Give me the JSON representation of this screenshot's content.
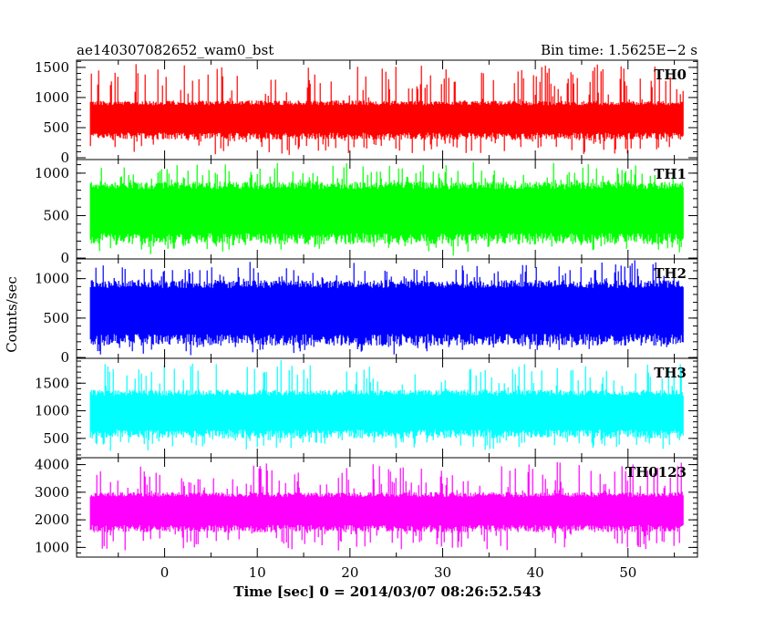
{
  "header": {
    "title": "ae140307082652_wam0_bst",
    "bin_time": "Bin time: 1.5625E−2 s"
  },
  "chart_data": {
    "type": "line",
    "xlabel": "Time [sec] 0 = 2014/03/07 08:26:52.543",
    "ylabel": "Counts/sec",
    "xlim": [
      -9.5,
      57.5
    ],
    "x_range": [
      -8,
      56
    ],
    "x_ticks": [
      0,
      10,
      20,
      30,
      40,
      50
    ],
    "panels": [
      {
        "name": "TH0",
        "color": "#ff0000",
        "ylim": [
          -30,
          1620
        ],
        "y_ticks": [
          0,
          500,
          1000,
          1500
        ],
        "band": [
          300,
          950
        ],
        "spike_max": 1600,
        "spike_min": 30
      },
      {
        "name": "TH1",
        "color": "#00ff00",
        "ylim": [
          -10,
          1160
        ],
        "y_ticks": [
          0,
          500,
          1000
        ],
        "band": [
          160,
          900
        ],
        "spike_max": 1150,
        "spike_min": 20
      },
      {
        "name": "TH2",
        "color": "#0000ff",
        "ylim": [
          -10,
          1250
        ],
        "y_ticks": [
          0,
          500,
          1000
        ],
        "band": [
          150,
          980
        ],
        "spike_max": 1240,
        "spike_min": 20
      },
      {
        "name": "TH3",
        "color": "#00ffff",
        "ylim": [
          150,
          1950
        ],
        "y_ticks": [
          500,
          1000,
          1500
        ],
        "band": [
          500,
          1380
        ],
        "spike_max": 1930,
        "spike_min": 250
      },
      {
        "name": "TH0123",
        "color": "#ff00ff",
        "ylim": [
          650,
          4250
        ],
        "y_ticks": [
          1000,
          2000,
          3000,
          4000
        ],
        "band": [
          1550,
          3000
        ],
        "spike_max": 4150,
        "spike_min": 800
      }
    ]
  }
}
